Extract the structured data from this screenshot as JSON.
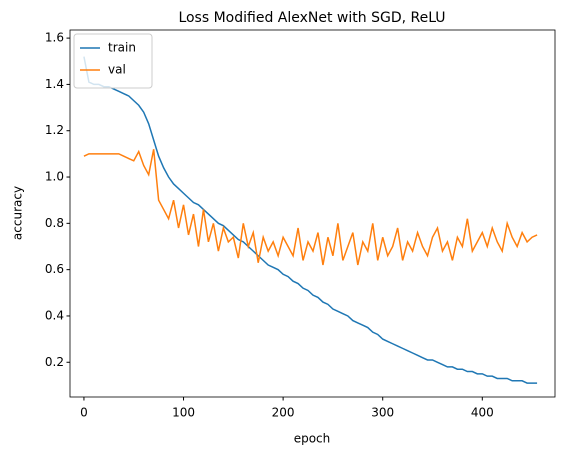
{
  "chart_data": {
    "type": "line",
    "title": "Loss Modified AlexNet with SGD, ReLU",
    "x_label": "epoch",
    "y_label": "accuracy",
    "x": [
      0,
      5,
      10,
      15,
      20,
      25,
      30,
      35,
      40,
      45,
      50,
      55,
      60,
      65,
      70,
      75,
      80,
      85,
      90,
      95,
      100,
      105,
      110,
      115,
      120,
      125,
      130,
      135,
      140,
      145,
      150,
      155,
      160,
      165,
      170,
      175,
      180,
      185,
      190,
      195,
      200,
      205,
      210,
      215,
      220,
      225,
      230,
      235,
      240,
      245,
      250,
      255,
      260,
      265,
      270,
      275,
      280,
      285,
      290,
      295,
      300,
      305,
      310,
      315,
      320,
      325,
      330,
      335,
      340,
      345,
      350,
      355,
      360,
      365,
      370,
      375,
      380,
      385,
      390,
      395,
      400,
      405,
      410,
      415,
      420,
      425,
      430,
      435,
      440,
      445,
      450,
      455
    ],
    "series": [
      {
        "name": "train",
        "color": "#1f77b4",
        "values": [
          1.52,
          1.41,
          1.4,
          1.4,
          1.39,
          1.39,
          1.38,
          1.37,
          1.36,
          1.35,
          1.33,
          1.31,
          1.28,
          1.23,
          1.16,
          1.09,
          1.04,
          1.0,
          0.97,
          0.95,
          0.93,
          0.91,
          0.89,
          0.88,
          0.86,
          0.84,
          0.82,
          0.8,
          0.79,
          0.77,
          0.75,
          0.73,
          0.72,
          0.7,
          0.68,
          0.66,
          0.64,
          0.62,
          0.61,
          0.6,
          0.58,
          0.57,
          0.55,
          0.54,
          0.52,
          0.51,
          0.49,
          0.48,
          0.46,
          0.45,
          0.43,
          0.42,
          0.41,
          0.4,
          0.38,
          0.37,
          0.36,
          0.35,
          0.33,
          0.32,
          0.3,
          0.29,
          0.28,
          0.27,
          0.26,
          0.25,
          0.24,
          0.23,
          0.22,
          0.21,
          0.21,
          0.2,
          0.19,
          0.18,
          0.18,
          0.17,
          0.17,
          0.16,
          0.16,
          0.15,
          0.15,
          0.14,
          0.14,
          0.13,
          0.13,
          0.13,
          0.12,
          0.12,
          0.12,
          0.11,
          0.11,
          0.11
        ]
      },
      {
        "name": "val",
        "color": "#ff7f0e",
        "values": [
          1.09,
          1.1,
          1.1,
          1.1,
          1.1,
          1.1,
          1.1,
          1.1,
          1.09,
          1.08,
          1.07,
          1.11,
          1.05,
          1.01,
          1.12,
          0.9,
          0.86,
          0.82,
          0.9,
          0.78,
          0.88,
          0.75,
          0.84,
          0.7,
          0.86,
          0.72,
          0.8,
          0.68,
          0.78,
          0.72,
          0.74,
          0.65,
          0.8,
          0.7,
          0.76,
          0.63,
          0.74,
          0.68,
          0.72,
          0.66,
          0.74,
          0.7,
          0.66,
          0.78,
          0.64,
          0.72,
          0.68,
          0.76,
          0.62,
          0.74,
          0.66,
          0.8,
          0.64,
          0.7,
          0.76,
          0.62,
          0.72,
          0.68,
          0.8,
          0.64,
          0.74,
          0.66,
          0.7,
          0.78,
          0.64,
          0.72,
          0.68,
          0.76,
          0.7,
          0.66,
          0.74,
          0.78,
          0.68,
          0.72,
          0.64,
          0.74,
          0.7,
          0.82,
          0.68,
          0.72,
          0.76,
          0.7,
          0.78,
          0.72,
          0.68,
          0.8,
          0.74,
          0.7,
          0.76,
          0.72,
          0.74,
          0.75
        ]
      }
    ],
    "xlim": [
      -14,
      473
    ],
    "ylim": [
      0.05,
      1.635
    ],
    "xticks": [
      0,
      100,
      200,
      300,
      400
    ],
    "yticks": [
      0.2,
      0.4,
      0.6,
      0.8,
      {
        "value": 1,
        "label": "1.0"
      },
      1.2,
      1.4,
      1.6
    ],
    "legend": "upper left"
  }
}
